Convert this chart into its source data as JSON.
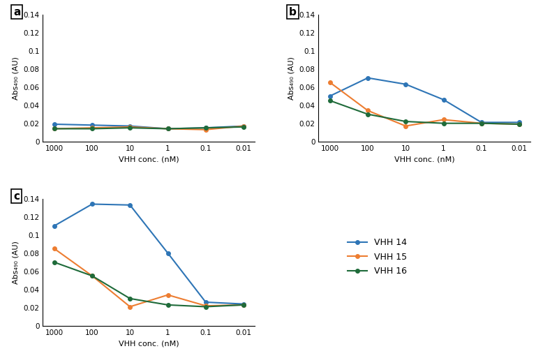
{
  "x_labels": [
    "1000",
    "100",
    "10",
    "1",
    "0.1",
    "0.01"
  ],
  "x_positions": [
    0,
    1,
    2,
    3,
    4,
    5
  ],
  "panel_a": {
    "label": "a",
    "xlabel": "VHH conc. (nM)",
    "ylabel": "Abs₄₉₀ (AU)",
    "ylim": [
      0,
      0.14
    ],
    "yticks": [
      0,
      0.02,
      0.04,
      0.06,
      0.08,
      0.1,
      0.12,
      0.14
    ],
    "ytick_labels": [
      "0",
      "0.02",
      "0.04",
      "0.06",
      "0.08",
      "0.1",
      "0.12",
      "0.14"
    ],
    "VHH14": [
      0.019,
      0.018,
      0.017,
      0.014,
      0.015,
      0.017
    ],
    "VHH15": [
      0.014,
      0.015,
      0.016,
      0.014,
      0.013,
      0.017
    ],
    "VHH16": [
      0.014,
      0.014,
      0.015,
      0.014,
      0.015,
      0.016
    ]
  },
  "panel_b": {
    "label": "b",
    "xlabel": "VHH conc. (nM)",
    "ylabel": "Abs₄₉₀ (AU)",
    "ylim": [
      0,
      0.14
    ],
    "yticks": [
      0,
      0.02,
      0.04,
      0.06,
      0.08,
      0.1,
      0.12,
      0.14
    ],
    "ytick_labels": [
      "0",
      "0.02",
      "0.04",
      "0.06",
      "0.08",
      "0.1",
      "0.12",
      "0.14"
    ],
    "VHH14": [
      0.05,
      0.07,
      0.063,
      0.046,
      0.021,
      0.021
    ],
    "VHH15": [
      0.065,
      0.034,
      0.017,
      0.024,
      0.02,
      0.019
    ],
    "VHH16": [
      0.045,
      0.03,
      0.022,
      0.02,
      0.02,
      0.019
    ]
  },
  "panel_c": {
    "label": "c",
    "xlabel": "VHH conc. (nM)",
    "ylabel": "Abs₄₉₀ (AU)",
    "ylim": [
      0,
      0.14
    ],
    "yticks": [
      0,
      0.02,
      0.04,
      0.06,
      0.08,
      0.1,
      0.12,
      0.14
    ],
    "ytick_labels": [
      "0",
      "0.02",
      "0.04",
      "0.06",
      "0.08",
      "0.1",
      "0.12",
      "0.14"
    ],
    "VHH14": [
      0.11,
      0.134,
      0.133,
      0.08,
      0.026,
      0.024
    ],
    "VHH15": [
      0.085,
      0.055,
      0.021,
      0.034,
      0.022,
      0.023
    ],
    "VHH16": [
      0.07,
      0.055,
      0.03,
      0.023,
      0.021,
      0.023
    ]
  },
  "colors": {
    "VHH14": "#2E75B6",
    "VHH15": "#ED7D31",
    "VHH16": "#1F6B3A"
  },
  "legend_labels": {
    "VHH14": "VHH 14",
    "VHH15": "VHH 15",
    "VHH16": "VHH 16"
  },
  "marker": "o",
  "markersize": 4,
  "linewidth": 1.5,
  "background_color": "#ffffff",
  "tick_fontsize": 7.5,
  "label_fontsize": 8,
  "panel_label_fontsize": 11
}
